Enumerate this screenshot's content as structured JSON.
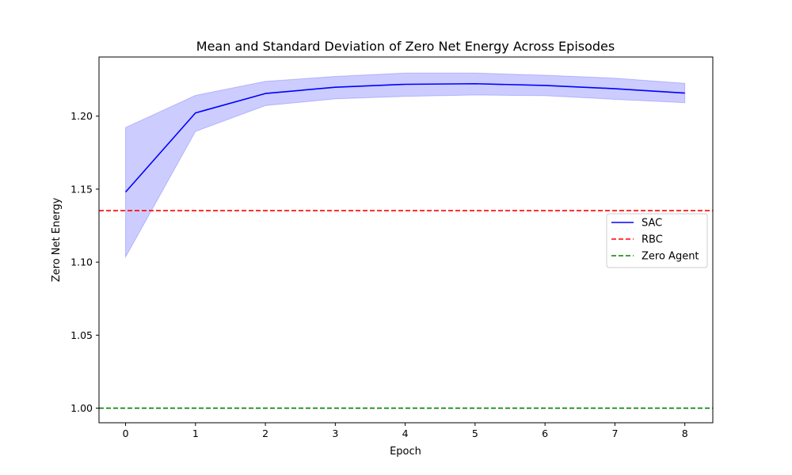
{
  "chart_data": {
    "type": "line",
    "title": "Mean and Standard Deviation of Zero Net Energy Across Episodes",
    "xlabel": "Epoch",
    "ylabel": "Zero Net Energy",
    "x": [
      0,
      1,
      2,
      3,
      4,
      5,
      6,
      7,
      8
    ],
    "xlim": [
      -0.38,
      8.4
    ],
    "ylim": [
      0.99,
      1.2405
    ],
    "xticks": [
      "0",
      "1",
      "2",
      "3",
      "4",
      "5",
      "6",
      "7",
      "8"
    ],
    "yticks": [
      "1.00",
      "1.05",
      "1.10",
      "1.15",
      "1.20"
    ],
    "grid": false,
    "legend_position": "center-right",
    "series": [
      {
        "name": "SAC",
        "style": "solid",
        "color": "#0000ff",
        "values": [
          1.148,
          1.2022,
          1.2155,
          1.2198,
          1.2218,
          1.2222,
          1.221,
          1.2188,
          1.2158
        ],
        "band_lower": [
          1.1035,
          1.1895,
          1.2072,
          1.2118,
          1.2135,
          1.2145,
          1.214,
          1.2115,
          1.2092
        ],
        "band_upper": [
          1.1922,
          1.2142,
          1.2238,
          1.2272,
          1.2295,
          1.2295,
          1.228,
          1.226,
          1.2225
        ],
        "band_color": "#0000ff"
      },
      {
        "name": "RBC",
        "style": "dashed",
        "color": "#ff0000",
        "hline": 1.1353
      },
      {
        "name": "Zero Agent",
        "style": "dashed",
        "color": "#008000",
        "hline": 1.0
      }
    ]
  }
}
